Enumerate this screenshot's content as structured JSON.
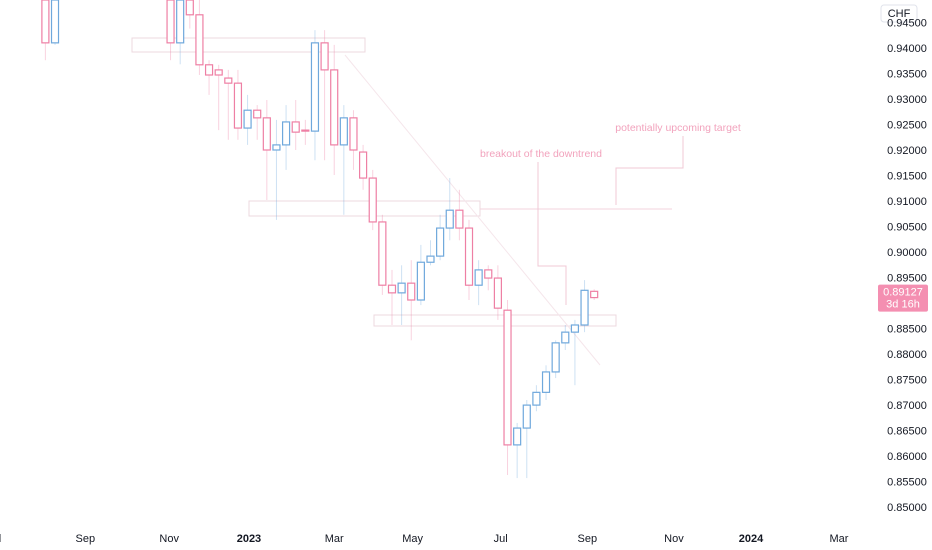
{
  "currency": "CHF",
  "chart_data": {
    "type": "candlestick",
    "up_color": "#6fa8dc",
    "down_color": "#ee7fa4",
    "xlim": [
      0,
      634
    ],
    "ylim": [
      0.8467,
      0.9496
    ],
    "xticks": [
      {
        "value": 0,
        "label": "l"
      },
      {
        "value": 62,
        "label": "Sep"
      },
      {
        "value": 123,
        "label": "Nov"
      },
      {
        "value": 181,
        "label": "2023"
      },
      {
        "value": 243,
        "label": "Mar"
      },
      {
        "value": 300,
        "label": "May"
      },
      {
        "value": 364,
        "label": "Jul"
      },
      {
        "value": 427,
        "label": "Sep"
      },
      {
        "value": 490,
        "label": "Nov"
      },
      {
        "value": 546,
        "label": "2024"
      },
      {
        "value": 610,
        "label": "Mar"
      }
    ],
    "yticks": [
      {
        "value": 0.85,
        "label": "0.85000"
      },
      {
        "value": 0.855,
        "label": "0.85500"
      },
      {
        "value": 0.86,
        "label": "0.86000"
      },
      {
        "value": 0.865,
        "label": "0.86500"
      },
      {
        "value": 0.87,
        "label": "0.87000"
      },
      {
        "value": 0.875,
        "label": "0.87500"
      },
      {
        "value": 0.88,
        "label": "0.88000"
      },
      {
        "value": 0.885,
        "label": "0.88500"
      },
      {
        "value": 0.89,
        "label": "0.89000"
      },
      {
        "value": 0.895,
        "label": "0.89500"
      },
      {
        "value": 0.9,
        "label": "0.90000"
      },
      {
        "value": 0.905,
        "label": "0.90500"
      },
      {
        "value": 0.91,
        "label": "0.91000"
      },
      {
        "value": 0.915,
        "label": "0.91500"
      },
      {
        "value": 0.92,
        "label": "0.92000"
      },
      {
        "value": 0.925,
        "label": "0.92500"
      },
      {
        "value": 0.93,
        "label": "0.93000"
      },
      {
        "value": 0.935,
        "label": "0.93500"
      },
      {
        "value": 0.94,
        "label": "0.94000"
      },
      {
        "value": 0.945,
        "label": "0.94500"
      }
    ],
    "x": [
      33,
      40,
      124,
      131,
      138,
      145,
      152,
      159,
      166,
      173,
      180,
      187,
      194,
      201,
      208,
      215,
      222,
      229,
      236,
      243,
      250,
      257,
      264,
      271,
      278,
      285,
      292,
      299,
      306,
      313,
      320,
      327,
      334,
      341,
      348,
      355,
      362,
      369,
      376,
      383,
      390,
      397,
      404,
      411,
      418,
      425,
      432
    ],
    "open": [
      0.9496,
      0.9412,
      0.9496,
      0.9412,
      0.9496,
      0.9467,
      0.9369,
      0.9359,
      0.9343,
      0.9333,
      0.9245,
      0.928,
      0.9265,
      0.9202,
      0.9212,
      0.9257,
      0.9241,
      0.9239,
      0.9412,
      0.9359,
      0.9212,
      0.9265,
      0.9198,
      0.9147,
      0.9061,
      0.8937,
      0.8922,
      0.8941,
      0.8908,
      0.8982,
      0.8994,
      0.9049,
      0.9084,
      0.9049,
      0.8937,
      0.8967,
      0.8951,
      0.8888,
      0.8624,
      0.8657,
      0.8702,
      0.8727,
      0.8767,
      0.8824,
      0.8845,
      0.8859,
      0.8925
    ],
    "high": [
      0.9496,
      0.9496,
      0.9496,
      0.9496,
      0.9496,
      0.9496,
      0.9378,
      0.9369,
      0.9359,
      0.9359,
      0.931,
      0.929,
      0.93,
      0.9261,
      0.929,
      0.93,
      0.9261,
      0.9437,
      0.9437,
      0.9408,
      0.929,
      0.928,
      0.9212,
      0.9163,
      0.9075,
      0.8967,
      0.8976,
      0.8986,
      0.9016,
      0.9025,
      0.9075,
      0.9147,
      0.9124,
      0.9065,
      0.8986,
      0.8976,
      0.8976,
      0.8908,
      0.8667,
      0.8712,
      0.8741,
      0.878,
      0.8829,
      0.8859,
      0.8869,
      0.8947,
      0.8929
    ],
    "low": [
      0.9378,
      0.9408,
      0.9378,
      0.937,
      0.944,
      0.9349,
      0.931,
      0.9241,
      0.9222,
      0.9222,
      0.9212,
      0.9222,
      0.9104,
      0.9065,
      0.9163,
      0.9202,
      0.9212,
      0.9182,
      0.9182,
      0.9153,
      0.9075,
      0.9163,
      0.9124,
      0.9045,
      0.8918,
      0.8859,
      0.8859,
      0.8829,
      0.8898,
      0.8976,
      0.8986,
      0.9025,
      0.9025,
      0.8908,
      0.8898,
      0.8927,
      0.8869,
      0.8565,
      0.8559,
      0.8559,
      0.869,
      0.8712,
      0.8755,
      0.881,
      0.8741,
      0.8845,
      0.8908
    ],
    "close": [
      0.9412,
      0.9496,
      0.9412,
      0.9496,
      0.9467,
      0.9369,
      0.9349,
      0.9349,
      0.9333,
      0.9245,
      0.928,
      0.9265,
      0.9202,
      0.9212,
      0.9257,
      0.9237,
      0.9239,
      0.9412,
      0.9359,
      0.9212,
      0.9265,
      0.9202,
      0.9147,
      0.9061,
      0.8937,
      0.8922,
      0.8941,
      0.8908,
      0.8982,
      0.8994,
      0.9049,
      0.9084,
      0.9049,
      0.8937,
      0.8967,
      0.8951,
      0.8892,
      0.8624,
      0.8657,
      0.8702,
      0.8727,
      0.8767,
      0.8824,
      0.8845,
      0.8859,
      0.8927,
      0.89127
    ],
    "last_price": {
      "value": 0.89127,
      "label": "0.89127"
    },
    "countdown": "3d 16h",
    "annotations": [
      "breakout of the downtrend",
      "potentially upcoming target"
    ]
  }
}
